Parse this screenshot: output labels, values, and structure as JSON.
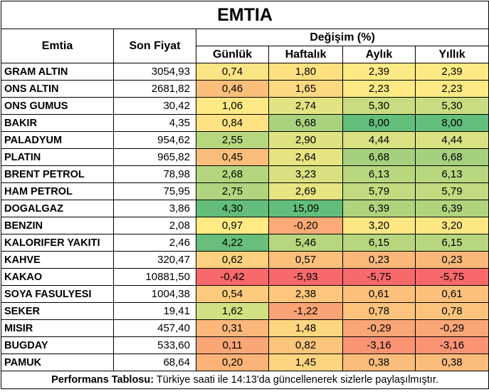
{
  "title": "EMTIA",
  "headers": {
    "emtia": "Emtia",
    "son_fiyat": "Son Fiyat",
    "degisim": "Değişim (%)",
    "gunluk": "Günlük",
    "haftalik": "Haftalık",
    "aylik": "Aylık",
    "yillik": "Yıllık"
  },
  "rows": [
    {
      "name": "GRAM ALTIN",
      "price": "3054,93",
      "gunluk": "0,74",
      "haftalik": "1,80",
      "aylik": "2,39",
      "yillik": "2,39"
    },
    {
      "name": "ONS ALTIN",
      "price": "2681,82",
      "gunluk": "0,46",
      "haftalik": "1,65",
      "aylik": "2,23",
      "yillik": "2,23"
    },
    {
      "name": "ONS GUMUS",
      "price": "30,42",
      "gunluk": "1,06",
      "haftalik": "2,74",
      "aylik": "5,30",
      "yillik": "5,30"
    },
    {
      "name": "BAKIR",
      "price": "4,35",
      "gunluk": "0,84",
      "haftalik": "6,68",
      "aylik": "8,00",
      "yillik": "8,00"
    },
    {
      "name": "PALADYUM",
      "price": "954,62",
      "gunluk": "2,55",
      "haftalik": "2,90",
      "aylik": "4,44",
      "yillik": "4,44"
    },
    {
      "name": "PLATIN",
      "price": "965,82",
      "gunluk": "0,45",
      "haftalik": "2,64",
      "aylik": "6,68",
      "yillik": "6,68"
    },
    {
      "name": "BRENT PETROL",
      "price": "78,98",
      "gunluk": "2,68",
      "haftalik": "3,23",
      "aylik": "6,13",
      "yillik": "6,13"
    },
    {
      "name": "HAM PETROL",
      "price": "75,95",
      "gunluk": "2,75",
      "haftalik": "2,69",
      "aylik": "5,79",
      "yillik": "5,79"
    },
    {
      "name": "DOGALGAZ",
      "price": "3,86",
      "gunluk": "4,30",
      "haftalik": "15,09",
      "aylik": "6,39",
      "yillik": "6,39"
    },
    {
      "name": "BENZIN",
      "price": "2,08",
      "gunluk": "0,97",
      "haftalik": "-0,20",
      "aylik": "3,20",
      "yillik": "3,20"
    },
    {
      "name": "KALORIFER YAKITI",
      "price": "2,46",
      "gunluk": "4,22",
      "haftalik": "5,46",
      "aylik": "6,15",
      "yillik": "6,15"
    },
    {
      "name": "KAHVE",
      "price": "320,47",
      "gunluk": "0,62",
      "haftalik": "0,57",
      "aylik": "0,23",
      "yillik": "0,23"
    },
    {
      "name": "KAKAO",
      "price": "10881,50",
      "gunluk": "-0,42",
      "haftalik": "-5,93",
      "aylik": "-5,75",
      "yillik": "-5,75"
    },
    {
      "name": "SOYA FASULYESI",
      "price": "1004,38",
      "gunluk": "0,54",
      "haftalik": "2,38",
      "aylik": "0,61",
      "yillik": "0,61"
    },
    {
      "name": "SEKER",
      "price": "19,41",
      "gunluk": "1,62",
      "haftalik": "-1,22",
      "aylik": "0,78",
      "yillik": "0,78"
    },
    {
      "name": "MISIR",
      "price": "457,40",
      "gunluk": "0,31",
      "haftalik": "1,48",
      "aylik": "-0,29",
      "yillik": "-0,29"
    },
    {
      "name": "BUGDAY",
      "price": "533,60",
      "gunluk": "0,11",
      "haftalik": "0,82",
      "aylik": "-3,16",
      "yillik": "-3,16"
    },
    {
      "name": "PAMUK",
      "price": "68,64",
      "gunluk": "0,20",
      "haftalik": "1,45",
      "aylik": "0,38",
      "yillik": "0,38"
    }
  ],
  "colors": {
    "gunluk": [
      "#fde485",
      "#fbbf7b",
      "#fee985",
      "#fde283",
      "#b7d77e",
      "#fbbd7b",
      "#b3d67e",
      "#b0d57e",
      "#64bd7a",
      "#ffeb84",
      "#68be7a",
      "#fdd17f",
      "#f8696b",
      "#fdcb7d",
      "#d1e082",
      "#fbb87a",
      "#f9a777",
      "#fbb379"
    ],
    "haftalik": [
      "#fee081",
      "#fdd981",
      "#e2e382",
      "#a9d27e",
      "#dfe282",
      "#e7e482",
      "#d8e081",
      "#e7e482",
      "#63be7b",
      "#fcaa77",
      "#b7d67e",
      "#fbc07c",
      "#f8696b",
      "#fec67c",
      "#faa376",
      "#fdd680",
      "#fbc57c",
      "#fdd580"
    ],
    "aylik": [
      "#fdea84",
      "#fdea84",
      "#c9dc81",
      "#63be7b",
      "#dae182",
      "#a5d17e",
      "#b9d77f",
      "#c2da80",
      "#b0d47e",
      "#fde783",
      "#b7d67f",
      "#fbb87a",
      "#f8696b",
      "#fcc07c",
      "#fcc37d",
      "#faa677",
      "#fa9474",
      "#fbbd7b"
    ],
    "yillik": [
      "#fdea84",
      "#fdea84",
      "#c9dc81",
      "#63be7b",
      "#dae182",
      "#a5d17e",
      "#b9d77f",
      "#c2da80",
      "#b0d47e",
      "#fde783",
      "#b7d67f",
      "#fbb87a",
      "#f8696b",
      "#fcc07c",
      "#fcc37d",
      "#faa677",
      "#fa9474",
      "#fbbd7b"
    ]
  },
  "footer": {
    "label": "Performans Tablosu:",
    "text": " Türkiye saati ile 14:13'da güncellenerek sizlerle paylaşılmıştır."
  }
}
